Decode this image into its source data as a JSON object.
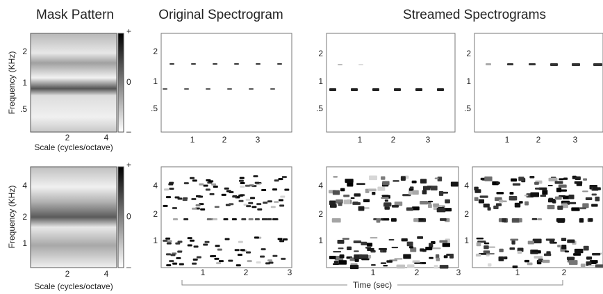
{
  "titles": {
    "mask": "Mask Pattern",
    "original": "Original Spectrogram",
    "streamed": "Streamed Spectrograms"
  },
  "y_label": "Frequency (KHz)",
  "x_label_scale": "Scale (cycles/octave)",
  "time_label": "Time (sec)",
  "colorbar": {
    "top": "+",
    "mid": "0",
    "bottom": "–"
  },
  "panels": [
    {
      "kind": "mask",
      "yticks": [
        "2",
        "1",
        ".5"
      ],
      "xticks": [
        "2",
        "4"
      ]
    },
    {
      "kind": "orig-top",
      "yticks": [
        "2",
        "1",
        ".5"
      ],
      "xticks": [
        "1",
        "2",
        "3"
      ]
    },
    {
      "kind": "stream-top-a",
      "yticks": [
        "2",
        "1",
        ".5"
      ],
      "xticks": [
        "1",
        "2",
        "3"
      ]
    },
    {
      "kind": "stream-top-b",
      "yticks": [
        "2",
        "1",
        ".5"
      ],
      "xticks": [
        "1",
        "2",
        "3"
      ]
    },
    {
      "kind": "mask2",
      "yticks": [
        "4",
        "2",
        "1"
      ],
      "xticks": [
        "2",
        "4"
      ]
    },
    {
      "kind": "orig-bot",
      "yticks": [
        "4",
        "2",
        "1"
      ],
      "xticks": [
        "1",
        "2",
        "3"
      ]
    },
    {
      "kind": "stream-bot-a",
      "yticks": [
        "4",
        "2",
        "1"
      ],
      "xticks": [
        "1",
        "2",
        "3"
      ]
    },
    {
      "kind": "stream-bot-b",
      "yticks": [
        "4",
        "2",
        "1"
      ],
      "xticks": [
        "1",
        "2"
      ]
    }
  ]
}
